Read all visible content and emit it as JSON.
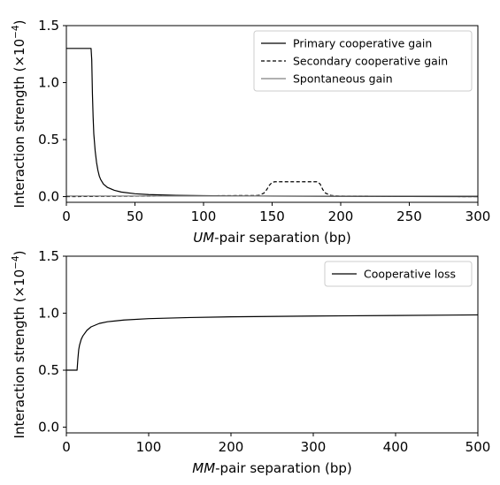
{
  "chart_data": [
    {
      "type": "line",
      "xlabel_italic": "UM",
      "xlabel_rest": "-pair separation (bp)",
      "ylabel_main": "Interaction strength (×10",
      "ylabel_exp": "−4",
      "ylabel_close": ")",
      "xlim": [
        0,
        300
      ],
      "ylim": [
        -0.05,
        1.5
      ],
      "xticks": [
        0,
        50,
        100,
        150,
        200,
        250,
        300
      ],
      "xtick_labels": [
        "0",
        "50",
        "100",
        "150",
        "200",
        "250",
        "300"
      ],
      "yticks": [
        0.0,
        0.5,
        1.0,
        1.5
      ],
      "ytick_labels": [
        "0.0",
        "0.5",
        "1.0",
        "1.5"
      ],
      "grid": false,
      "legend_position": "top-right",
      "series": [
        {
          "name": "Primary cooperative gain",
          "color": "#000000",
          "style": "solid",
          "x": [
            0,
            18,
            18.5,
            19,
            19.5,
            20,
            21,
            22,
            23,
            24,
            25,
            27,
            30,
            35,
            40,
            50,
            60,
            80,
            100,
            150,
            200,
            250,
            300
          ],
          "y": [
            1.3,
            1.3,
            1.2,
            0.9,
            0.7,
            0.55,
            0.4,
            0.3,
            0.23,
            0.18,
            0.15,
            0.11,
            0.08,
            0.055,
            0.04,
            0.025,
            0.018,
            0.011,
            0.008,
            0.004,
            0.002,
            0.001,
            0.0
          ]
        },
        {
          "name": "Secondary cooperative gain",
          "color": "#000000",
          "style": "dashed",
          "x": [
            0,
            140,
            144,
            146,
            148,
            150,
            152,
            183,
            185,
            187,
            189,
            193,
            200,
            300
          ],
          "y": [
            0.0,
            0.01,
            0.03,
            0.06,
            0.1,
            0.125,
            0.13,
            0.13,
            0.11,
            0.06,
            0.03,
            0.01,
            0.005,
            0.0
          ]
        },
        {
          "name": "Spontaneous gain",
          "color": "#808080",
          "style": "solid",
          "x": [
            0,
            300
          ],
          "y": [
            0.005,
            0.005
          ]
        }
      ]
    },
    {
      "type": "line",
      "xlabel_italic": "MM",
      "xlabel_rest": "-pair separation (bp)",
      "ylabel_main": "Interaction strength (×10",
      "ylabel_exp": "−4",
      "ylabel_close": ")",
      "xlim": [
        0,
        500
      ],
      "ylim": [
        -0.05,
        1.5
      ],
      "xticks": [
        0,
        100,
        200,
        300,
        400,
        500
      ],
      "xtick_labels": [
        "0",
        "100",
        "200",
        "300",
        "400",
        "500"
      ],
      "yticks": [
        0.0,
        0.5,
        1.0,
        1.5
      ],
      "ytick_labels": [
        "0.0",
        "0.5",
        "1.0",
        "1.5"
      ],
      "grid": false,
      "legend_position": "top-right",
      "series": [
        {
          "name": "Cooperative loss",
          "color": "#000000",
          "style": "solid",
          "x": [
            0,
            13,
            14,
            15,
            16,
            18,
            20,
            25,
            30,
            40,
            50,
            70,
            100,
            150,
            200,
            300,
            400,
            500
          ],
          "y": [
            0.5,
            0.5,
            0.6,
            0.68,
            0.72,
            0.77,
            0.8,
            0.85,
            0.88,
            0.91,
            0.925,
            0.94,
            0.952,
            0.962,
            0.968,
            0.975,
            0.98,
            0.985
          ]
        }
      ]
    }
  ]
}
